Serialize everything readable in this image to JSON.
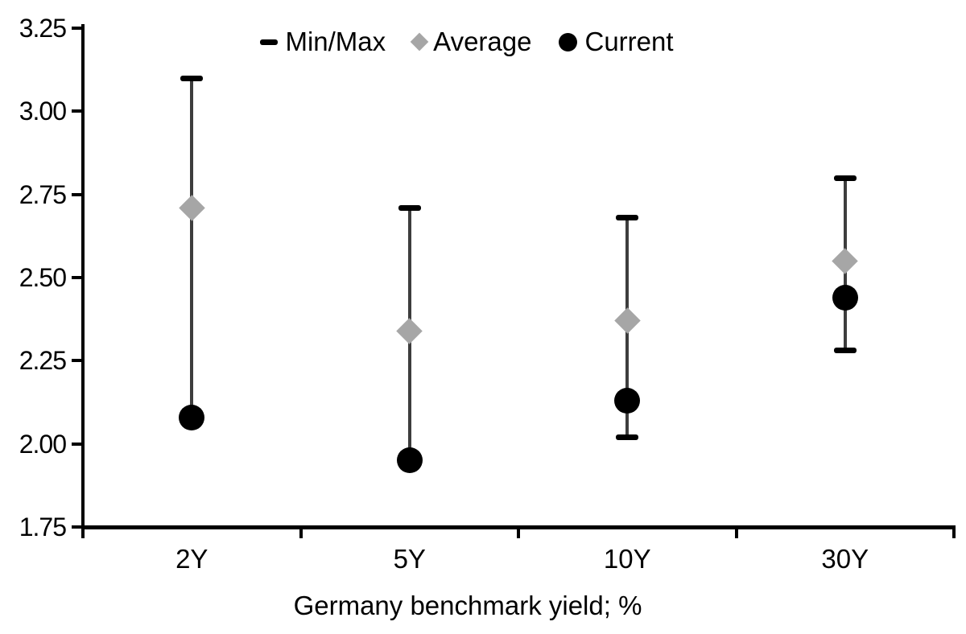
{
  "chart_data": {
    "type": "scatter",
    "subtype": "min-max-range-dot",
    "title": "",
    "xlabel": "Germany benchmark yield; %",
    "ylabel": "",
    "categories": [
      "2Y",
      "5Y",
      "10Y",
      "30Y"
    ],
    "series": [
      {
        "name": "Min/Max",
        "marker": "dash",
        "max": [
          3.1,
          2.71,
          2.68,
          2.8
        ],
        "min": [
          2.08,
          1.95,
          2.02,
          2.28
        ]
      },
      {
        "name": "Average",
        "marker": "diamond",
        "values": [
          2.71,
          2.34,
          2.37,
          2.55
        ]
      },
      {
        "name": "Current",
        "marker": "circle",
        "values": [
          2.08,
          1.95,
          2.13,
          2.44
        ]
      }
    ],
    "ylim": [
      1.75,
      3.25
    ],
    "y_ticks": [
      "3.25",
      "3.00",
      "2.75",
      "2.50",
      "2.25",
      "2.00",
      "1.75"
    ],
    "grid": false,
    "legend_position": "top-center",
    "colors": {
      "current": "#000000",
      "average": "#a6a6a6",
      "range_line": "#3d3d3d",
      "axis": "#000000",
      "text": "#000000",
      "background": "#ffffff"
    }
  }
}
